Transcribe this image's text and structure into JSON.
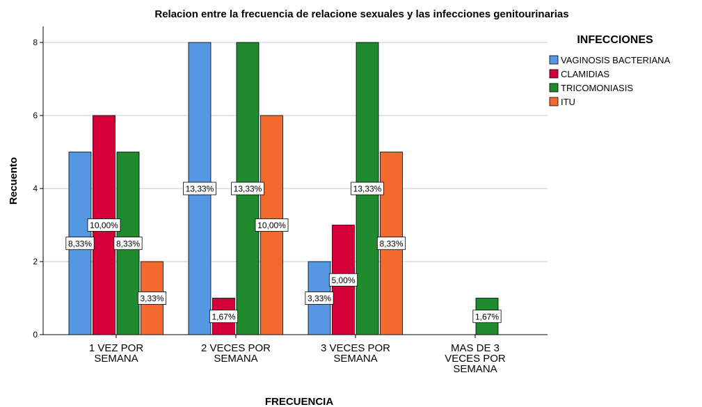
{
  "chart_data": {
    "type": "bar",
    "title": "Relacion entre la frecuencia de relacione sexuales y las infecciones genitourinarias",
    "x_label": "FRECUENCIA",
    "y_label": "Recuento",
    "legend_title": "INFECCIONES",
    "categories": [
      "1 VEZ POR\nSEMANA",
      "2 VECES POR\nSEMANA",
      "3 VECES POR\nSEMANA",
      "MAS DE 3\nVECES POR\nSEMANA"
    ],
    "series": [
      {
        "name": "VAGINOSIS BACTERIANA",
        "color": "#5597e3",
        "values": [
          5,
          8,
          2,
          null
        ],
        "percent_labels": [
          "8,33%",
          "13,33%",
          "3,33%",
          null
        ]
      },
      {
        "name": "CLAMIDIAS",
        "color": "#d4003a",
        "values": [
          6,
          1,
          3,
          null
        ],
        "percent_labels": [
          "10,00%",
          "1,67%",
          "5,00%",
          null
        ]
      },
      {
        "name": "TRICOMONIASIS",
        "color": "#1f8a2e",
        "values": [
          5,
          8,
          8,
          1
        ],
        "percent_labels": [
          "8,33%",
          "13,33%",
          "13,33%",
          "1,67%"
        ]
      },
      {
        "name": "ITU",
        "color": "#f26a2d",
        "values": [
          2,
          6,
          5,
          null
        ],
        "percent_labels": [
          "3,33%",
          "10,00%",
          "8,33%",
          null
        ]
      }
    ],
    "ylim": [
      0,
      8
    ],
    "yticks": [
      0,
      2,
      4,
      6,
      8
    ],
    "grid": true,
    "legend": "right"
  }
}
